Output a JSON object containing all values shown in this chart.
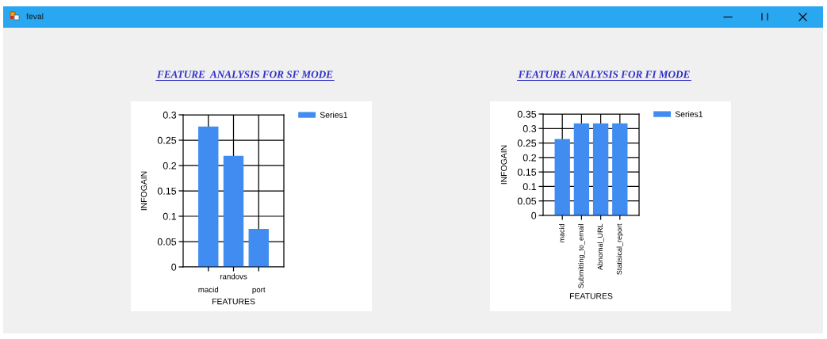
{
  "chart_data": [
    {
      "type": "bar",
      "title": "FEATURE  ANALYSIS FOR SF MODE",
      "xlabel": "FEATURES",
      "ylabel": "INFOGAIN",
      "categories": [
        "macid",
        "randovs",
        "port"
      ],
      "series": [
        {
          "name": "Series1",
          "color": "#418cf0",
          "values": [
            0.277,
            0.219,
            0.075
          ]
        }
      ],
      "ylim": [
        0,
        0.3
      ],
      "yticks": [
        0,
        0.05,
        0.1,
        0.15,
        0.2,
        0.25,
        0.3
      ],
      "grid": true,
      "legend": "top right",
      "annotations": [
        "feval"
      ]
    },
    {
      "type": "bar",
      "title": "FEATURE ANALYSIS FOR FI MODE",
      "xlabel": "FEATURES",
      "ylabel": "INFOGAIN",
      "categories": [
        "macid",
        "Submitting_to_email",
        "Abnomal_URL",
        "Statisical_report"
      ],
      "series": [
        {
          "name": "Series1",
          "color": "#418cf0",
          "values": [
            0.264,
            0.318,
            0.318,
            0.318
          ]
        }
      ],
      "ylim": [
        0,
        0.35
      ],
      "yticks": [
        0,
        0.05,
        0.1,
        0.15,
        0.2,
        0.25,
        0.3,
        0.35
      ],
      "grid": true,
      "legend": "top right"
    }
  ]
}
